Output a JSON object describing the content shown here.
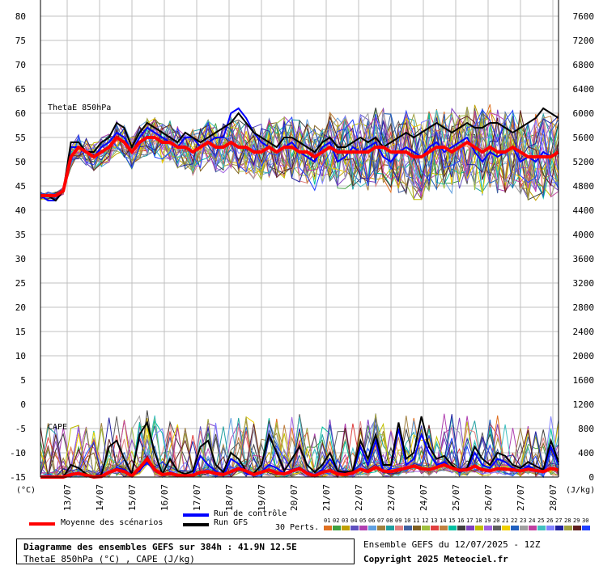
{
  "colors": {
    "mean": "#ff0000",
    "control": "#0000ff",
    "gfs": "#000000",
    "grid": "#c0c0c0",
    "members": [
      "#e07020",
      "#40a040",
      "#c0a000",
      "#6050c0",
      "#b040b0",
      "#60a0e0",
      "#a08040",
      "#20a0a0",
      "#e08080",
      "#4060a0",
      "#806020",
      "#a0c040",
      "#e04040",
      "#c08040",
      "#00c0a0",
      "#404040",
      "#8040c0",
      "#c0c000",
      "#a060e0",
      "#606060",
      "#f0d000",
      "#2060c0",
      "#a0a0a0",
      "#c040a0",
      "#40c0c0",
      "#8080ff",
      "#2020a0",
      "#a0a040",
      "#602020",
      "#2040ff"
    ]
  },
  "footer": {
    "title": "Diagramme des ensembles GEFS sur 384h : 41.9N 12.5E",
    "subtitle": "ThetaE 850hPa (°C) , CAPE (J/kg)",
    "run_info": "Ensemble GEFS du 12/07/2025 - 12Z",
    "copyright": "Copyright 2025 Meteociel.fr"
  },
  "legend": {
    "mean": "Moyenne des scénarios",
    "control": "Run de contrôle",
    "gfs": "Run GFS",
    "perts_label": "30 Perts.",
    "pert_numbers": [
      "01",
      "02",
      "03",
      "04",
      "05",
      "06",
      "07",
      "08",
      "09",
      "10",
      "11",
      "12",
      "13",
      "14",
      "15",
      "16",
      "17",
      "18",
      "19",
      "20",
      "21",
      "22",
      "23",
      "24",
      "25",
      "26",
      "27",
      "28",
      "29",
      "30"
    ]
  },
  "chart_data": [
    {
      "type": "line",
      "title": "ThetaE 850hPa",
      "ylabel": "°C",
      "y_left_ticks": [
        80,
        75,
        70,
        65,
        60,
        55,
        50,
        45,
        40,
        35,
        30,
        25,
        20,
        15,
        10,
        5,
        0,
        -5,
        -10,
        -15
      ],
      "ylim": [
        -15,
        80
      ],
      "x_ticks": [
        "13/07",
        "14/07",
        "15/07",
        "16/07",
        "17/07",
        "18/07",
        "19/07",
        "20/07",
        "21/07",
        "22/07",
        "23/07",
        "24/07",
        "25/07",
        "26/07",
        "27/07",
        "28/07"
      ],
      "hours_step": 6,
      "series": [
        {
          "name": "Moyenne des scénarios",
          "values": [
            43,
            43,
            43,
            44,
            51,
            53,
            52,
            51,
            52,
            53,
            55,
            54,
            52,
            54,
            55,
            55,
            54,
            54,
            53,
            53,
            52,
            53,
            54,
            53,
            53,
            54,
            53,
            53,
            52,
            52,
            53,
            52,
            53,
            53,
            52,
            52,
            51,
            52,
            53,
            52,
            52,
            52,
            52,
            52,
            53,
            53,
            52,
            52,
            52,
            51,
            51,
            52,
            53,
            53,
            52,
            53,
            54,
            53,
            52,
            53,
            52,
            52,
            53,
            52,
            51,
            51,
            51,
            51,
            52
          ]
        },
        {
          "name": "Run de contrôle",
          "values": [
            43,
            42,
            42,
            44,
            53,
            53,
            52,
            51,
            53,
            54,
            56,
            55,
            52,
            55,
            57,
            56,
            55,
            54,
            53,
            55,
            55,
            53,
            54,
            55,
            55,
            60,
            61,
            59,
            56,
            54,
            53,
            52,
            53,
            54,
            52,
            51,
            50,
            53,
            54,
            50,
            51,
            53,
            52,
            53,
            54,
            51,
            50,
            52,
            53,
            52,
            51,
            53,
            54,
            52,
            53,
            54,
            55,
            52,
            50,
            52,
            51,
            52,
            53,
            50,
            51,
            50,
            52,
            51,
            52
          ]
        },
        {
          "name": "Run GFS",
          "values": [
            43,
            43,
            42,
            44,
            54,
            54,
            52,
            52,
            54,
            55,
            58,
            57,
            53,
            56,
            58,
            57,
            56,
            55,
            54,
            56,
            55,
            54,
            55,
            56,
            57,
            58,
            60,
            58,
            56,
            55,
            54,
            53,
            55,
            55,
            54,
            53,
            52,
            54,
            55,
            53,
            53,
            54,
            55,
            54,
            55,
            53,
            54,
            55,
            56,
            55,
            56,
            57,
            58,
            57,
            56,
            57,
            58,
            57,
            57,
            58,
            58,
            57,
            56,
            57,
            58,
            59,
            61,
            60,
            59
          ]
        }
      ]
    },
    {
      "type": "line",
      "title": "CAPE",
      "ylabel": "J/kg",
      "y_right_ticks": [
        7600,
        7200,
        6800,
        6400,
        6000,
        5600,
        5200,
        4800,
        4400,
        4000,
        3600,
        3200,
        2800,
        2400,
        2000,
        1600,
        1200,
        800,
        400,
        0
      ],
      "ylim": [
        0,
        7600
      ],
      "series": [
        {
          "name": "Moyenne des scénarios",
          "values": [
            0,
            0,
            0,
            0,
            40,
            60,
            30,
            0,
            10,
            80,
            120,
            90,
            20,
            150,
            300,
            120,
            40,
            60,
            30,
            20,
            30,
            80,
            90,
            60,
            40,
            90,
            140,
            100,
            40,
            80,
            120,
            70,
            50,
            100,
            140,
            60,
            20,
            80,
            110,
            50,
            40,
            70,
            130,
            90,
            160,
            100,
            90,
            120,
            150,
            180,
            140,
            120,
            160,
            200,
            150,
            110,
            120,
            180,
            120,
            100,
            140,
            130,
            120,
            100,
            130,
            110,
            90,
            140,
            120
          ]
        },
        {
          "name": "Run de contrôle",
          "values": [
            0,
            0,
            0,
            0,
            60,
            50,
            20,
            0,
            20,
            60,
            150,
            120,
            30,
            100,
            250,
            100,
            30,
            80,
            40,
            30,
            40,
            350,
            200,
            100,
            20,
            300,
            220,
            60,
            30,
            90,
            200,
            150,
            60,
            120,
            160,
            80,
            40,
            120,
            300,
            100,
            60,
            50,
            500,
            200,
            600,
            80,
            140,
            800,
            200,
            300,
            700,
            400,
            200,
            250,
            150,
            80,
            120,
            400,
            200,
            150,
            300,
            250,
            150,
            100,
            180,
            120,
            80,
            500,
            200
          ]
        },
        {
          "name": "Run GFS",
          "values": [
            0,
            0,
            0,
            0,
            200,
            150,
            50,
            0,
            40,
            500,
            600,
            300,
            50,
            700,
            900,
            400,
            50,
            300,
            100,
            50,
            100,
            500,
            600,
            200,
            80,
            400,
            300,
            100,
            60,
            200,
            700,
            400,
            100,
            300,
            500,
            200,
            80,
            200,
            400,
            100,
            80,
            100,
            600,
            300,
            700,
            200,
            200,
            900,
            300,
            400,
            1000,
            500,
            300,
            350,
            200,
            100,
            150,
            500,
            300,
            200,
            400,
            350,
            200,
            150,
            250,
            180,
            120,
            600,
            250
          ]
        }
      ]
    }
  ]
}
